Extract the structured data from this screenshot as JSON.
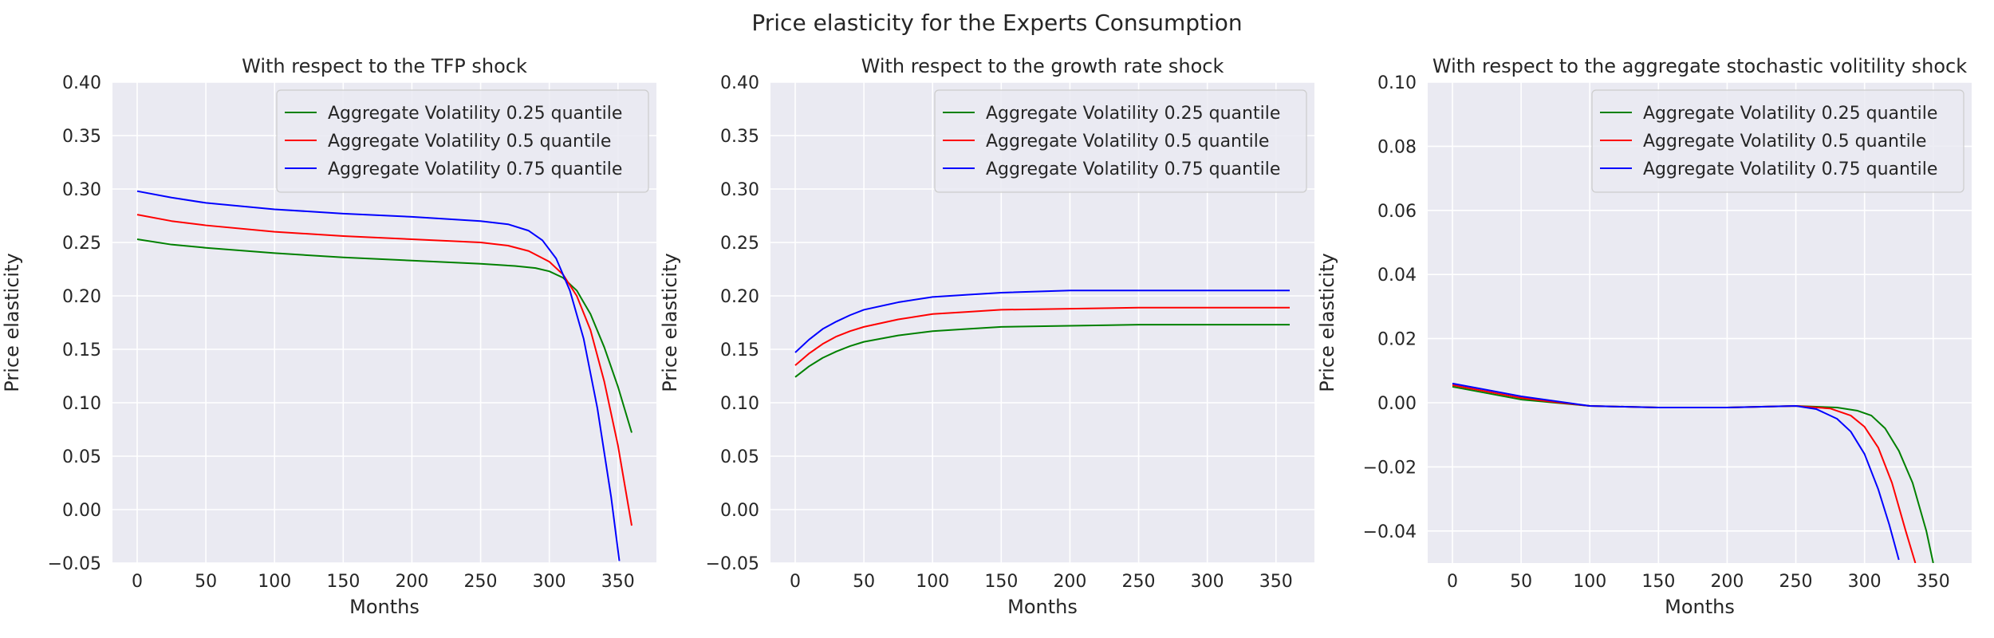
{
  "figure": {
    "suptitle": "Price elasticity for the Experts Consumption"
  },
  "colors": {
    "background": "#eaeaf2",
    "grid": "#ffffff",
    "q025": "#008000",
    "q05": "#ff0000",
    "q075": "#0000ff"
  },
  "chart_data": [
    {
      "type": "line",
      "title": "With respect to the TFP shock",
      "xlabel": "Months",
      "ylabel": "Price elasticity",
      "xlim": [
        -18,
        378
      ],
      "ylim": [
        -0.05,
        0.4
      ],
      "xticks": [
        0,
        50,
        100,
        150,
        200,
        250,
        300,
        350
      ],
      "yticks": [
        -0.05,
        0.0,
        0.05,
        0.1,
        0.15,
        0.2,
        0.25,
        0.3,
        0.35,
        0.4
      ],
      "ytick_labels": [
        "−0.05",
        "0.00",
        "0.05",
        "0.10",
        "0.15",
        "0.20",
        "0.25",
        "0.30",
        "0.35",
        "0.40"
      ],
      "grid": true,
      "legend_position": "top-right",
      "series": [
        {
          "name": "Aggregate Volatility 0.25 quantile",
          "color": "#008000",
          "x": [
            0,
            25,
            50,
            100,
            150,
            200,
            250,
            275,
            290,
            300,
            310,
            320,
            330,
            340,
            350,
            360
          ],
          "y": [
            0.253,
            0.248,
            0.245,
            0.24,
            0.236,
            0.233,
            0.23,
            0.228,
            0.226,
            0.223,
            0.217,
            0.205,
            0.183,
            0.152,
            0.115,
            0.072
          ]
        },
        {
          "name": "Aggregate Volatility 0.5 quantile",
          "color": "#ff0000",
          "x": [
            0,
            25,
            50,
            100,
            150,
            200,
            250,
            270,
            285,
            300,
            310,
            320,
            330,
            340,
            350,
            360
          ],
          "y": [
            0.276,
            0.27,
            0.266,
            0.26,
            0.256,
            0.253,
            0.25,
            0.247,
            0.242,
            0.232,
            0.22,
            0.2,
            0.168,
            0.12,
            0.06,
            -0.015
          ]
        },
        {
          "name": "Aggregate Volatility 0.75 quantile",
          "color": "#0000ff",
          "x": [
            0,
            25,
            50,
            100,
            150,
            200,
            250,
            270,
            285,
            295,
            305,
            315,
            325,
            335,
            345,
            351
          ],
          "y": [
            0.298,
            0.292,
            0.287,
            0.281,
            0.277,
            0.274,
            0.27,
            0.267,
            0.261,
            0.252,
            0.235,
            0.205,
            0.16,
            0.095,
            0.012,
            -0.048
          ]
        }
      ]
    },
    {
      "type": "line",
      "title": "With respect to the growth rate shock",
      "xlabel": "Months",
      "ylabel": "Price elasticity",
      "xlim": [
        -18,
        378
      ],
      "ylim": [
        -0.05,
        0.4
      ],
      "xticks": [
        0,
        50,
        100,
        150,
        200,
        250,
        300,
        350
      ],
      "yticks": [
        -0.05,
        0.0,
        0.05,
        0.1,
        0.15,
        0.2,
        0.25,
        0.3,
        0.35,
        0.4
      ],
      "ytick_labels": [
        "−0.05",
        "0.00",
        "0.05",
        "0.10",
        "0.15",
        "0.20",
        "0.25",
        "0.30",
        "0.35",
        "0.40"
      ],
      "grid": true,
      "legend_position": "top-right",
      "series": [
        {
          "name": "Aggregate Volatility 0.25 quantile",
          "color": "#008000",
          "x": [
            0,
            10,
            20,
            30,
            40,
            50,
            75,
            100,
            125,
            150,
            200,
            250,
            300,
            360
          ],
          "y": [
            0.124,
            0.134,
            0.142,
            0.148,
            0.153,
            0.157,
            0.163,
            0.167,
            0.169,
            0.171,
            0.172,
            0.173,
            0.173,
            0.173
          ]
        },
        {
          "name": "Aggregate Volatility 0.5 quantile",
          "color": "#ff0000",
          "x": [
            0,
            10,
            20,
            30,
            40,
            50,
            75,
            100,
            125,
            150,
            200,
            250,
            300,
            360
          ],
          "y": [
            0.135,
            0.146,
            0.155,
            0.162,
            0.167,
            0.171,
            0.178,
            0.183,
            0.185,
            0.187,
            0.188,
            0.189,
            0.189,
            0.189
          ]
        },
        {
          "name": "Aggregate Volatility 0.75 quantile",
          "color": "#0000ff",
          "x": [
            0,
            10,
            20,
            30,
            40,
            50,
            75,
            100,
            125,
            150,
            200,
            250,
            300,
            360
          ],
          "y": [
            0.147,
            0.159,
            0.169,
            0.176,
            0.182,
            0.187,
            0.194,
            0.199,
            0.201,
            0.203,
            0.205,
            0.205,
            0.205,
            0.205
          ]
        }
      ]
    },
    {
      "type": "line",
      "title": "With respect to the aggregate stochastic volitility shock",
      "xlabel": "Months",
      "ylabel": "Price elasticity",
      "xlim": [
        -18,
        378
      ],
      "ylim": [
        -0.05,
        0.1
      ],
      "xticks": [
        0,
        50,
        100,
        150,
        200,
        250,
        300,
        350
      ],
      "yticks": [
        -0.04,
        -0.02,
        0.0,
        0.02,
        0.04,
        0.06,
        0.08,
        0.1
      ],
      "ytick_labels": [
        "−0.04",
        "−0.02",
        "0.00",
        "0.02",
        "0.04",
        "0.06",
        "0.08",
        "0.10"
      ],
      "grid": true,
      "legend_position": "top-right",
      "series": [
        {
          "name": "Aggregate Volatility 0.25 quantile",
          "color": "#008000",
          "x": [
            0,
            25,
            50,
            75,
            100,
            150,
            200,
            250,
            280,
            295,
            305,
            315,
            325,
            335,
            345,
            350
          ],
          "y": [
            0.005,
            0.003,
            0.001,
            0.0,
            -0.001,
            -0.0015,
            -0.0015,
            -0.001,
            -0.0015,
            -0.0025,
            -0.004,
            -0.008,
            -0.015,
            -0.025,
            -0.04,
            -0.05
          ]
        },
        {
          "name": "Aggregate Volatility 0.5 quantile",
          "color": "#ff0000",
          "x": [
            0,
            25,
            50,
            75,
            100,
            150,
            200,
            250,
            275,
            290,
            300,
            310,
            320,
            330,
            337
          ],
          "y": [
            0.0055,
            0.0035,
            0.0015,
            0.0002,
            -0.001,
            -0.0015,
            -0.0015,
            -0.001,
            -0.0018,
            -0.004,
            -0.0075,
            -0.014,
            -0.025,
            -0.04,
            -0.05
          ]
        },
        {
          "name": "Aggregate Volatility 0.75 quantile",
          "color": "#0000ff",
          "x": [
            0,
            25,
            50,
            75,
            100,
            150,
            200,
            250,
            265,
            280,
            290,
            300,
            310,
            318,
            325
          ],
          "y": [
            0.006,
            0.004,
            0.002,
            0.0005,
            -0.001,
            -0.0015,
            -0.0015,
            -0.001,
            -0.002,
            -0.005,
            -0.009,
            -0.016,
            -0.027,
            -0.038,
            -0.049
          ]
        }
      ]
    }
  ]
}
